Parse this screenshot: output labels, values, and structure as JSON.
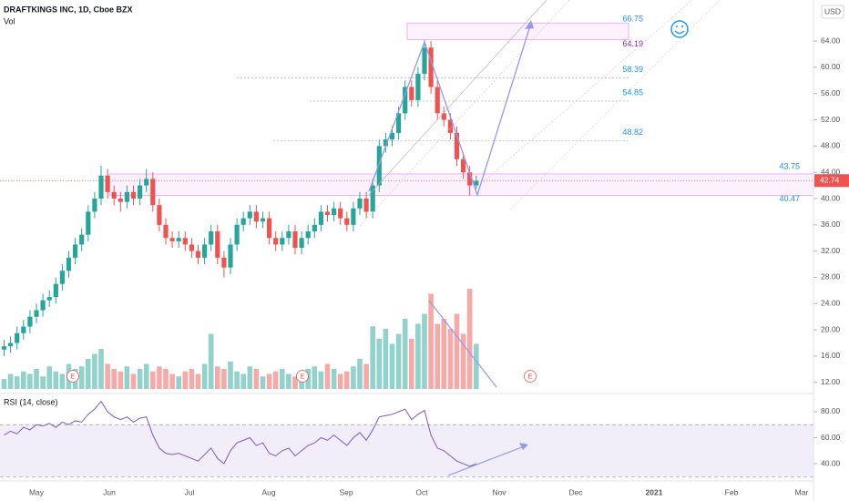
{
  "chart_data": {
    "type": "candlestick",
    "title": "DRAFTKINGS INC, 1D, Cboe BZX",
    "volume_label": "Vol",
    "rsi_label": "RSI (14, close)",
    "currency": "USD",
    "earnings_marker": "E",
    "months": [
      "May",
      "Jun",
      "Jul",
      "Aug",
      "Sep",
      "Oct",
      "Nov",
      "Dec",
      "2021",
      "Feb",
      "Mar"
    ],
    "open": [
      17,
      17.5,
      18,
      19.5,
      20.5,
      22,
      23,
      24.5,
      25,
      27,
      29,
      31,
      33,
      34.5,
      38,
      40,
      43.5,
      41,
      40,
      39.5,
      41,
      40,
      42,
      43,
      39,
      36,
      34,
      33.5,
      34,
      33,
      32,
      31,
      33,
      35,
      31,
      29.5,
      33,
      36,
      37,
      38,
      36.5,
      37,
      34,
      33,
      34,
      35,
      32.5,
      34,
      35,
      36,
      38,
      37.5,
      38.5,
      37,
      36,
      38.5,
      40,
      38,
      42,
      48,
      49,
      50,
      53,
      57,
      55,
      59,
      63,
      57,
      53,
      52,
      50,
      46,
      44,
      42
    ],
    "close": [
      17.5,
      18,
      19.5,
      20.5,
      22,
      23,
      24.5,
      25,
      27,
      29,
      31,
      33,
      34.5,
      38,
      40,
      43.5,
      41,
      40,
      39.5,
      41,
      40,
      42,
      43,
      39,
      36,
      34,
      33.5,
      34,
      33,
      32,
      31,
      33,
      35,
      31,
      29.5,
      33,
      36,
      37,
      38,
      36.5,
      37,
      34,
      33,
      34,
      35,
      32.5,
      34,
      35,
      36,
      38,
      37.5,
      38.5,
      37,
      36,
      38.5,
      40,
      38,
      42,
      48,
      49,
      50,
      53,
      57,
      55,
      59,
      63,
      57,
      53,
      52,
      50,
      46,
      44,
      42,
      42.7
    ],
    "high": [
      18.5,
      19,
      20.5,
      21.5,
      23,
      24,
      25.5,
      26,
      28,
      30,
      32,
      34,
      35.5,
      39,
      41,
      45,
      44.5,
      42,
      41,
      42,
      42,
      43,
      44.5,
      44,
      40,
      37,
      35,
      35,
      35,
      34,
      33,
      34,
      36,
      36,
      32,
      34,
      37,
      38,
      39,
      39,
      38,
      38,
      35,
      35,
      36,
      36,
      35,
      36,
      37,
      39,
      39,
      39.5,
      39.5,
      38,
      39.5,
      41,
      41,
      43,
      49,
      50,
      51,
      54,
      58,
      58,
      60,
      64.2,
      64,
      58,
      54,
      53,
      51,
      47,
      45,
      43.5
    ],
    "low": [
      16,
      16.5,
      17,
      18.5,
      19.5,
      21,
      22,
      23.5,
      24,
      26,
      28,
      30,
      32,
      33.5,
      37,
      39,
      40,
      39,
      38,
      38.5,
      39,
      39,
      41,
      38,
      35,
      33,
      32.5,
      32.5,
      32,
      31,
      30,
      30,
      32,
      30,
      28,
      28.5,
      32,
      35,
      36,
      35.5,
      35.5,
      33,
      32,
      32,
      33,
      31.5,
      31.5,
      33,
      34,
      35,
      36.5,
      36.5,
      36,
      35,
      35,
      37.5,
      37,
      37,
      41,
      47,
      48,
      49,
      52,
      54,
      54,
      58,
      56,
      52,
      51,
      49,
      45,
      43,
      40.5,
      41.5
    ],
    "volume": [
      4,
      6,
      5,
      7,
      6,
      8,
      5,
      9,
      7,
      6,
      10,
      8,
      9,
      12,
      14,
      16,
      10,
      8,
      7,
      9,
      6,
      8,
      10,
      7,
      9,
      8,
      6,
      5,
      7,
      8,
      6,
      10,
      22,
      9,
      8,
      11,
      7,
      6,
      9,
      8,
      5,
      6,
      7,
      8,
      6,
      5,
      7,
      8,
      9,
      7,
      10,
      8,
      6,
      7,
      9,
      12,
      10,
      25,
      20,
      24,
      18,
      22,
      28,
      20,
      26,
      30,
      38,
      26,
      28,
      24,
      30,
      22,
      40,
      18
    ],
    "rsi": [
      62,
      65,
      63,
      68,
      66,
      70,
      69,
      71,
      68,
      72,
      70,
      73,
      72,
      78,
      82,
      88,
      80,
      76,
      74,
      76,
      72,
      75,
      76,
      62,
      52,
      48,
      47,
      48,
      46,
      44,
      42,
      47,
      52,
      44,
      40,
      50,
      56,
      58,
      60,
      54,
      56,
      48,
      46,
      50,
      52,
      46,
      50,
      54,
      56,
      60,
      58,
      62,
      58,
      54,
      60,
      64,
      58,
      66,
      76,
      77,
      78,
      80,
      82,
      74,
      78,
      81,
      62,
      52,
      50,
      46,
      42,
      40,
      38,
      40
    ],
    "ylim": [
      11,
      70.25
    ],
    "yticks": [
      {
        "value": 12,
        "label": "12.00"
      },
      {
        "value": 16,
        "label": "16.00"
      },
      {
        "value": 20,
        "label": "20.00"
      },
      {
        "value": 24,
        "label": "24.00"
      },
      {
        "value": 28,
        "label": "28.00"
      },
      {
        "value": 32,
        "label": "32.00"
      },
      {
        "value": 36,
        "label": "36.00"
      },
      {
        "value": 40,
        "label": "40.00"
      },
      {
        "value": 44,
        "label": "44.00"
      },
      {
        "value": 48,
        "label": "48.00"
      },
      {
        "value": 52,
        "label": "52.00"
      },
      {
        "value": 56,
        "label": "56.00"
      },
      {
        "value": 60,
        "label": "60.00"
      },
      {
        "value": 64,
        "label": "64.00"
      }
    ],
    "rsi_lim": [
      26.7,
      90.5
    ],
    "rsi_ticks": [
      {
        "value": 40,
        "label": "40.00"
      },
      {
        "value": 60,
        "label": "60.00"
      },
      {
        "value": 80,
        "label": "80.00"
      }
    ],
    "rsi_band": [
      30,
      70
    ],
    "levels": [
      66.75,
      64.19,
      58.39,
      54.85,
      48.82,
      43.75,
      40.47
    ],
    "last_price": 42.74,
    "up_color": "#26a69a",
    "down_color": "#ef5350"
  }
}
